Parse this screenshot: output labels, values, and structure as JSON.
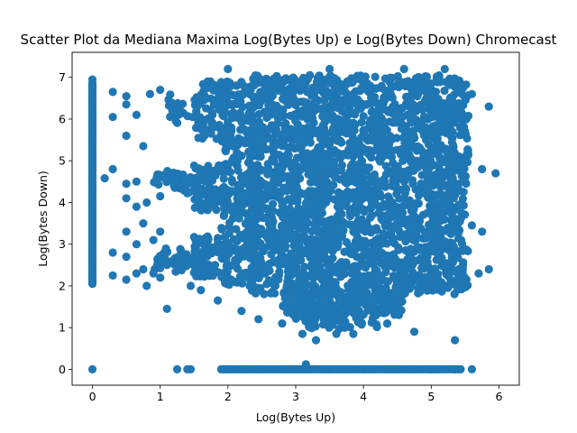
{
  "chart_data": {
    "type": "scatter",
    "title": "Scatter Plot da Mediana Maxima Log(Bytes Up) e Log(Bytes Down) Chromecast",
    "xlabel": "Log(Bytes Up)",
    "ylabel": "Log(Bytes Down)",
    "xlim": [
      -0.3,
      6.3
    ],
    "ylim": [
      -0.38,
      7.6
    ],
    "xticks": [
      0,
      1,
      2,
      3,
      4,
      5,
      6
    ],
    "yticks": [
      0,
      1,
      2,
      3,
      4,
      5,
      6,
      7
    ],
    "grid": false,
    "legend": "none",
    "series": [
      {
        "color": "#1f77b4",
        "points": [
          [
            0,
            0
          ],
          [
            0,
            2.1
          ],
          [
            0,
            2.3
          ],
          [
            0,
            2.6
          ],
          [
            0,
            3.0
          ],
          [
            0,
            3.5
          ],
          [
            0,
            4.0
          ],
          [
            0,
            4.5
          ],
          [
            0,
            5.0
          ],
          [
            0,
            5.5
          ],
          [
            0,
            6.0
          ],
          [
            0,
            6.5
          ],
          [
            0,
            6.95
          ],
          [
            0.18,
            4.58
          ],
          [
            0.3,
            2.25
          ],
          [
            0.3,
            2.8
          ],
          [
            0.3,
            4.8
          ],
          [
            0.3,
            6.05
          ],
          [
            0.3,
            6.65
          ],
          [
            0.5,
            2.15
          ],
          [
            0.5,
            2.7
          ],
          [
            0.5,
            3.3
          ],
          [
            0.5,
            4.1
          ],
          [
            0.5,
            4.45
          ],
          [
            0.5,
            5.6
          ],
          [
            0.5,
            6.35
          ],
          [
            0.5,
            6.55
          ],
          [
            0.65,
            2.3
          ],
          [
            0.65,
            3.0
          ],
          [
            0.65,
            3.9
          ],
          [
            0.65,
            4.5
          ],
          [
            0.65,
            6.1
          ],
          [
            0.75,
            2.4
          ],
          [
            0.75,
            3.5
          ],
          [
            0.75,
            5.35
          ],
          [
            0.8,
            2.0
          ],
          [
            0.8,
            4.0
          ],
          [
            0.85,
            6.6
          ],
          [
            0.9,
            2.3
          ],
          [
            0.9,
            3.1
          ],
          [
            0.95,
            4.6
          ],
          [
            1.0,
            2.2
          ],
          [
            1.0,
            3.3
          ],
          [
            1.0,
            4.15
          ],
          [
            1.0,
            6.7
          ],
          [
            1.1,
            1.45
          ],
          [
            1.1,
            2.5
          ],
          [
            1.1,
            4.7
          ],
          [
            1.25,
            0
          ],
          [
            1.4,
            0
          ],
          [
            1.45,
            0
          ],
          [
            1.45,
            2.0
          ],
          [
            1.6,
            1.9
          ],
          [
            1.7,
            6.9
          ],
          [
            1.85,
            1.65
          ],
          [
            2.2,
            1.4
          ],
          [
            2.45,
            1.2
          ],
          [
            2.8,
            1.1
          ],
          [
            3.1,
            0.85
          ],
          [
            3.3,
            0.7
          ],
          [
            3.4,
            1.3
          ],
          [
            3.6,
            0.85
          ],
          [
            3.85,
            0.85
          ],
          [
            4.35,
            1.1
          ],
          [
            4.75,
            0.9
          ],
          [
            5.35,
            0.7
          ],
          [
            5.6,
            3.45
          ],
          [
            5.7,
            2.3
          ],
          [
            5.85,
            2.4
          ],
          [
            5.75,
            3.3
          ],
          [
            5.75,
            4.8
          ],
          [
            5.95,
            4.7
          ],
          [
            5.85,
            6.3
          ],
          [
            5.6,
            6.6
          ],
          [
            5.6,
            0
          ],
          [
            5.2,
            7.2
          ],
          [
            4.6,
            7.2
          ],
          [
            3.5,
            7.2
          ],
          [
            2.0,
            7.2
          ],
          [
            3.15,
            0.12
          ],
          [
            2.5,
            0
          ],
          [
            3.0,
            0
          ],
          [
            3.5,
            0
          ],
          [
            4.0,
            0
          ],
          [
            4.5,
            0
          ],
          [
            5.0,
            0
          ],
          [
            5.35,
            0
          ]
        ]
      }
    ]
  }
}
